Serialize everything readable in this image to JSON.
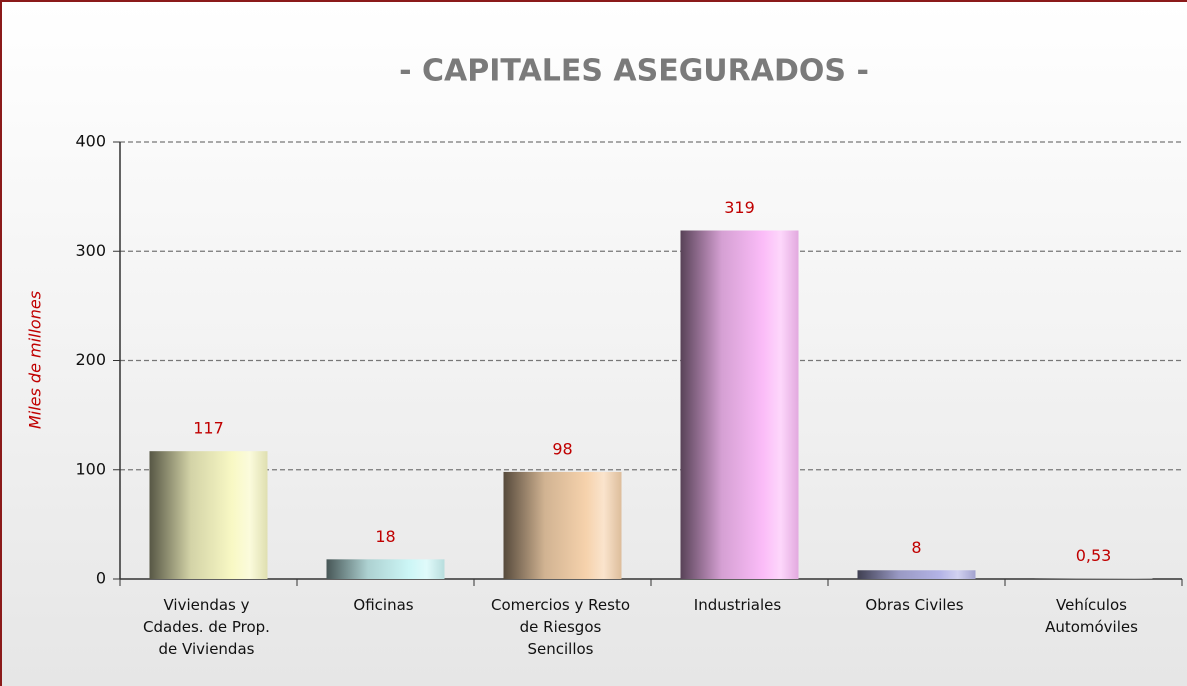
{
  "chart_data": {
    "type": "bar",
    "title": "- CAPITALES ASEGURADOS -",
    "y_label": "Miles de millones",
    "categories": [
      "Viviendas y Cdades. de Prop. de Viviendas",
      "Oficinas",
      "Comercios y Resto de Riesgos Sencillos",
      "Industriales",
      "Obras Civiles",
      "Vehículos Automóviles"
    ],
    "values": [
      117,
      18,
      98,
      319,
      8,
      0.53
    ],
    "value_labels": [
      "117",
      "18",
      "98",
      "319",
      "8",
      "0,53"
    ],
    "colors": [
      "#f8f8c4",
      "#ccf6f6",
      "#f6d2ac",
      "#fbbcf8",
      "#b4b4e6",
      "#d8d8d8"
    ],
    "ylim": [
      0,
      400
    ],
    "yticks": [
      0,
      100,
      200,
      300,
      400
    ],
    "grid": true
  }
}
